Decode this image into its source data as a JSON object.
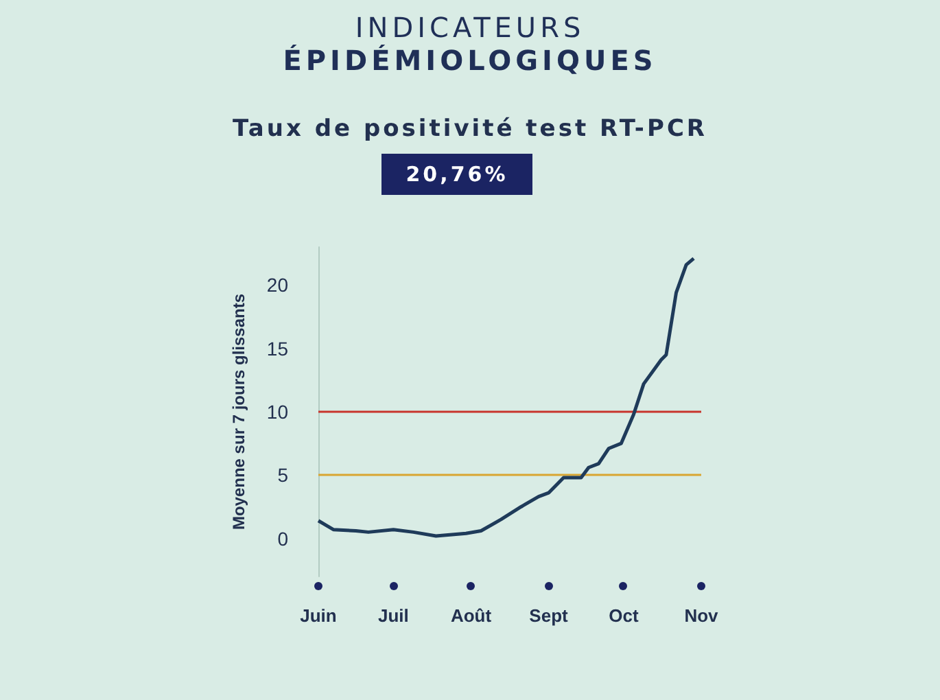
{
  "chart_data": {
    "type": "line",
    "title": "INDICATEURS ÉPIDÉMIOLOGIQUES",
    "subtitle": "Taux de positivité test RT-PCR",
    "ylabel": "Moyenne sur 7 jours glissants",
    "annotations": [
      "20,76%"
    ],
    "series": [
      {
        "color": "#1f3b5a",
        "x": [
          "--06-01",
          "--06-07",
          "--06-16",
          "--06-21",
          "--07-01",
          "--07-09",
          "--07-18",
          "--07-30",
          "--08-05",
          "--08-13",
          "--08-21",
          "--08-28",
          "--09-01",
          "--09-07",
          "--09-14",
          "--09-17",
          "--09-21",
          "--09-25",
          "--09-30",
          "--10-05",
          "--10-09",
          "--10-16",
          "--10-18",
          "--10-22",
          "--10-26",
          "--10-29"
        ],
        "values": [
          1.4,
          0.7,
          0.6,
          0.5,
          0.7,
          0.5,
          0.2,
          0.4,
          0.6,
          1.5,
          2.5,
          3.3,
          3.6,
          4.8,
          4.8,
          5.6,
          5.9,
          7.1,
          7.5,
          9.8,
          12.2,
          14.1,
          14.5,
          19.4,
          21.6,
          22.1
        ]
      }
    ],
    "xlim": [
      "--06-01",
      "--11-01"
    ],
    "xticks": [
      {
        "value": "--06-01",
        "label": "Juin"
      },
      {
        "value": "--07-01",
        "label": "Juil"
      },
      {
        "value": "--08-01",
        "label": "Août"
      },
      {
        "value": "--09-01",
        "label": "Sept"
      },
      {
        "value": "--10-01",
        "label": "Oct"
      },
      {
        "value": "--11-01",
        "label": "Nov"
      }
    ],
    "ylim": [
      -3,
      23
    ],
    "yticks": [
      0,
      5,
      10,
      15,
      20
    ],
    "ref_lines": [
      {
        "axis": "y",
        "value": 10,
        "color": "#c8342c"
      },
      {
        "axis": "y",
        "value": 5,
        "color": "#d9a531"
      }
    ]
  }
}
